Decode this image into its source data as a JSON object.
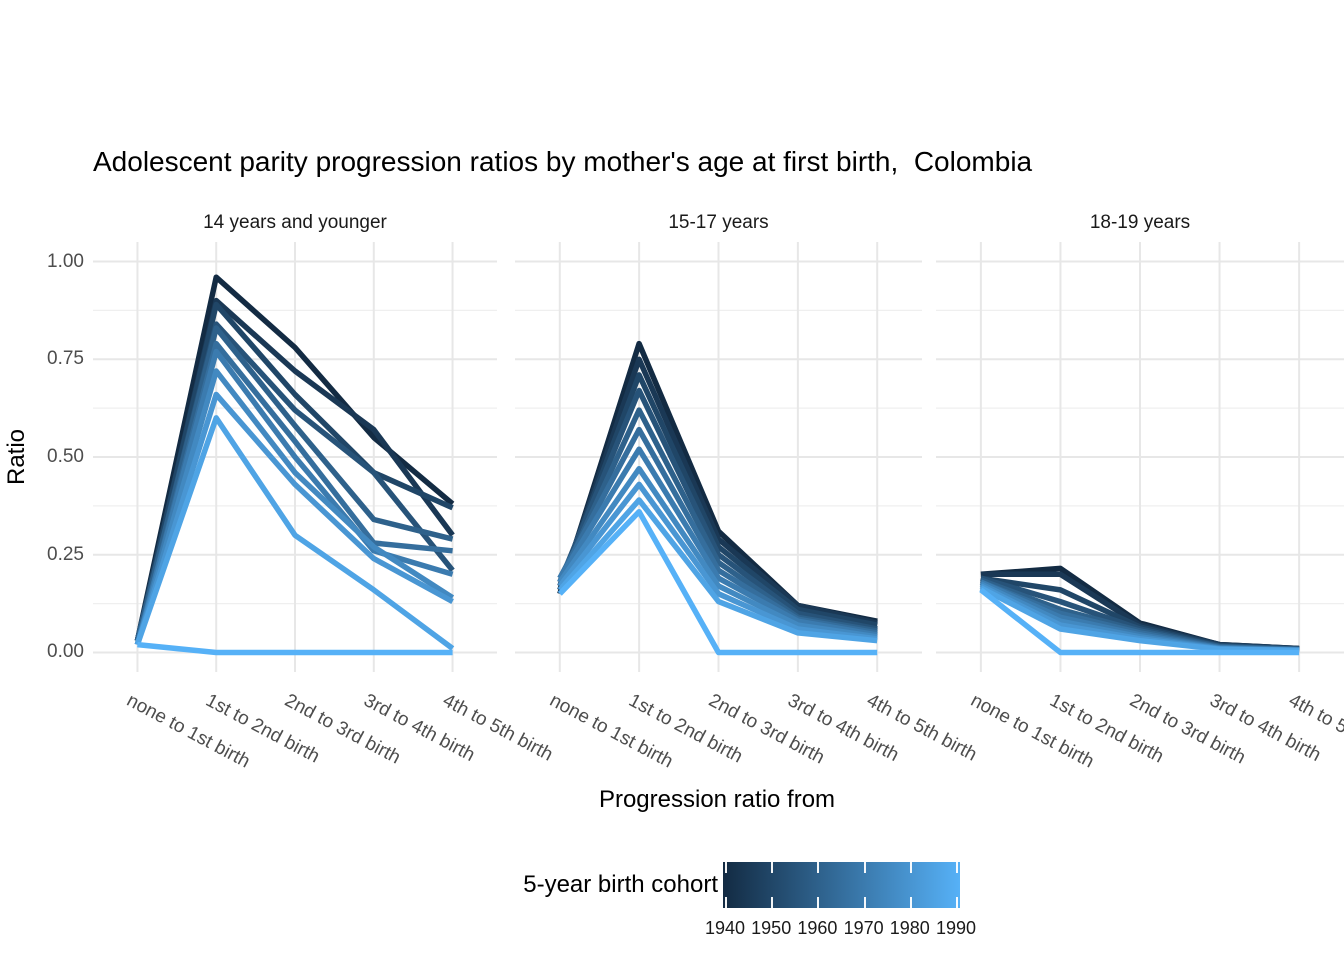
{
  "chart_data": {
    "type": "line",
    "title": "Adolescent parity progression ratios by mother's age at first birth,  Colombia",
    "xlabel": "Progression ratio from",
    "ylabel": "Ratio",
    "ylim": [
      0,
      1
    ],
    "grid": true,
    "y_tick_values": [
      1.0,
      0.75,
      0.5,
      0.25,
      0.0
    ],
    "y_tick_labels": [
      "1.00",
      "0.75",
      "0.50",
      "0.25",
      "0.00"
    ],
    "y_minor_values": [
      0.125,
      0.375,
      0.625,
      0.875
    ],
    "categories": [
      "none to 1st birth",
      "1st to 2nd birth",
      "2nd to 3rd birth",
      "3rd to 4th birth",
      "4th to 5th birth"
    ],
    "facets": [
      {
        "label": "14 years and younger",
        "series": [
          {
            "name": "1940",
            "values": [
              0.03,
              0.96,
              0.78,
              0.55,
              0.38
            ]
          },
          {
            "name": "1945",
            "values": [
              0.03,
              0.9,
              0.72,
              0.57,
              0.3
            ]
          },
          {
            "name": "1950",
            "values": [
              0.03,
              0.89,
              0.66,
              0.46,
              0.37
            ]
          },
          {
            "name": "1955",
            "values": [
              0.03,
              0.84,
              0.62,
              0.46,
              0.21
            ]
          },
          {
            "name": "1960",
            "values": [
              0.03,
              0.83,
              0.58,
              0.34,
              0.29
            ]
          },
          {
            "name": "1965",
            "values": [
              0.02,
              0.79,
              0.54,
              0.28,
              0.26
            ]
          },
          {
            "name": "1970",
            "values": [
              0.02,
              0.77,
              0.5,
              0.26,
              0.2
            ]
          },
          {
            "name": "1975",
            "values": [
              0.02,
              0.72,
              0.46,
              0.27,
              0.14
            ]
          },
          {
            "name": "1980",
            "values": [
              0.02,
              0.66,
              0.43,
              0.24,
              0.13
            ]
          },
          {
            "name": "1985",
            "values": [
              0.02,
              0.6,
              0.3,
              0.16,
              0.01
            ]
          },
          {
            "name": "1990",
            "values": [
              0.02,
              0.0,
              0.0,
              0.0,
              0.0
            ]
          }
        ]
      },
      {
        "label": "15-17 years",
        "series": [
          {
            "name": "1940",
            "values": [
              0.15,
              0.79,
              0.31,
              0.12,
              0.08
            ]
          },
          {
            "name": "1945",
            "values": [
              0.16,
              0.75,
              0.29,
              0.12,
              0.075
            ]
          },
          {
            "name": "1950",
            "values": [
              0.17,
              0.71,
              0.27,
              0.11,
              0.07
            ]
          },
          {
            "name": "1955",
            "values": [
              0.18,
              0.67,
              0.25,
              0.1,
              0.06
            ]
          },
          {
            "name": "1960",
            "values": [
              0.18,
              0.62,
              0.23,
              0.09,
              0.055
            ]
          },
          {
            "name": "1965",
            "values": [
              0.19,
              0.57,
              0.21,
              0.085,
              0.05
            ]
          },
          {
            "name": "1970",
            "values": [
              0.19,
              0.52,
              0.19,
              0.08,
              0.045
            ]
          },
          {
            "name": "1975",
            "values": [
              0.18,
              0.47,
              0.17,
              0.07,
              0.04
            ]
          },
          {
            "name": "1980",
            "values": [
              0.17,
              0.43,
              0.15,
              0.06,
              0.035
            ]
          },
          {
            "name": "1985",
            "values": [
              0.16,
              0.39,
              0.13,
              0.05,
              0.03
            ]
          },
          {
            "name": "1990",
            "values": [
              0.15,
              0.36,
              0.0,
              0.0,
              0.0
            ]
          }
        ]
      },
      {
        "label": "18-19 years",
        "series": [
          {
            "name": "1940",
            "values": [
              0.2,
              0.215,
              0.075,
              0.02,
              0.01
            ]
          },
          {
            "name": "1945",
            "values": [
              0.2,
              0.2,
              0.07,
              0.02,
              0.01
            ]
          },
          {
            "name": "1950",
            "values": [
              0.19,
              0.16,
              0.065,
              0.018,
              0.009
            ]
          },
          {
            "name": "1955",
            "values": [
              0.19,
              0.13,
              0.06,
              0.016,
              0.008
            ]
          },
          {
            "name": "1960",
            "values": [
              0.185,
              0.11,
              0.055,
              0.015,
              0.008
            ]
          },
          {
            "name": "1965",
            "values": [
              0.18,
              0.1,
              0.05,
              0.013,
              0.007
            ]
          },
          {
            "name": "1970",
            "values": [
              0.18,
              0.09,
              0.045,
              0.012,
              0.006
            ]
          },
          {
            "name": "1975",
            "values": [
              0.175,
              0.08,
              0.04,
              0.01,
              0.006
            ]
          },
          {
            "name": "1980",
            "values": [
              0.17,
              0.07,
              0.035,
              0.009,
              0.005
            ]
          },
          {
            "name": "1985",
            "values": [
              0.165,
              0.06,
              0.03,
              0.008,
              0.005
            ]
          },
          {
            "name": "1990",
            "values": [
              0.16,
              0.0,
              0.0,
              0.0,
              0.0
            ]
          }
        ]
      }
    ],
    "legend": {
      "title": "5-year birth cohort",
      "position": "bottom",
      "tick_labels": [
        "1940",
        "1950",
        "1960",
        "1970",
        "1980",
        "1990"
      ],
      "gradient": [
        "#132B43",
        "#56B1F7"
      ]
    },
    "colors": {
      "grid_major": "#e7e7e7",
      "grid_minor": "#efefef",
      "axis_text": "#4d4d4d",
      "text": "#000000"
    }
  }
}
